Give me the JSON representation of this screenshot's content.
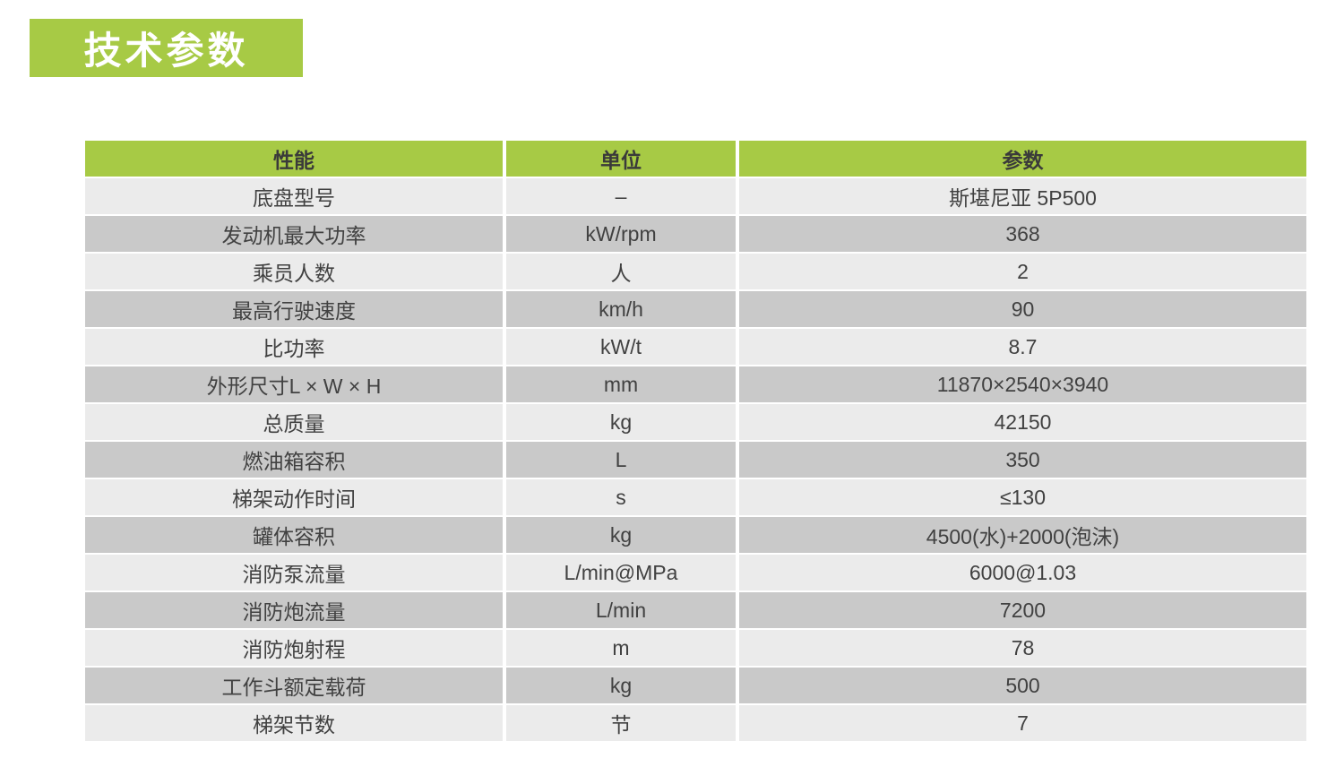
{
  "header": {
    "title": "技术参数"
  },
  "table": {
    "headers": [
      "性能",
      "单位",
      "参数"
    ],
    "rows": [
      {
        "name": "底盘型号",
        "unit": "–",
        "value": "斯堪尼亚 5P500"
      },
      {
        "name": "发动机最大功率",
        "unit": "kW/rpm",
        "value": "368"
      },
      {
        "name": "乘员人数",
        "unit": "人",
        "value": "2"
      },
      {
        "name": "最高行驶速度",
        "unit": "km/h",
        "value": "90"
      },
      {
        "name": "比功率",
        "unit": "kW/t",
        "value": "8.7"
      },
      {
        "name": "外形尺寸L × W × H",
        "unit": "mm",
        "value": "11870×2540×3940"
      },
      {
        "name": "总质量",
        "unit": "kg",
        "value": "42150"
      },
      {
        "name": "燃油箱容积",
        "unit": "L",
        "value": "350"
      },
      {
        "name": "梯架动作时间",
        "unit": "s",
        "value": "≤130"
      },
      {
        "name": "罐体容积",
        "unit": "kg",
        "value": "4500(水)+2000(泡沫)"
      },
      {
        "name": "消防泵流量",
        "unit": "L/min@MPa",
        "value": "6000@1.03"
      },
      {
        "name": "消防炮流量",
        "unit": "L/min",
        "value": "7200"
      },
      {
        "name": "消防炮射程",
        "unit": "m",
        "value": "78"
      },
      {
        "name": "工作斗额定载荷",
        "unit": "kg",
        "value": "500"
      },
      {
        "name": "梯架节数",
        "unit": "节",
        "value": "7"
      }
    ]
  },
  "colors": {
    "accent_green": "#a7ca45",
    "row_light": "#ebebeb",
    "row_dark": "#c9c9c9",
    "header_text": "#3a3a3a",
    "cell_text": "#414141",
    "badge_text": "#ffffff"
  }
}
